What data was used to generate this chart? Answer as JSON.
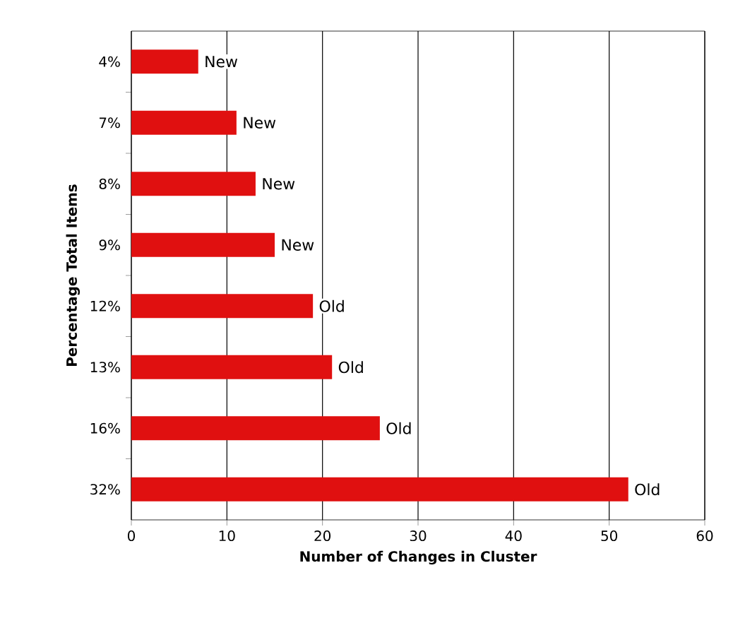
{
  "chart_data": {
    "type": "bar",
    "orientation": "horizontal",
    "xlabel": "Number of Changes in Cluster",
    "ylabel": "Percentage Total Items",
    "categories": [
      "4%",
      "7%",
      "8%",
      "9%",
      "12%",
      "13%",
      "16%",
      "32%"
    ],
    "values": [
      7,
      11,
      13,
      15,
      19,
      21,
      26,
      52
    ],
    "color": "#e01010",
    "xlim": [
      0,
      60
    ],
    "xticks": [
      0,
      10,
      20,
      30,
      40,
      50,
      60
    ],
    "grid": "x",
    "annotations": [
      {
        "text": "New",
        "x": 7,
        "y": "4%"
      },
      {
        "text": "New",
        "x": 11,
        "y": "7%"
      },
      {
        "text": "New",
        "x": 13,
        "y": "8%"
      },
      {
        "text": "New",
        "x": 15,
        "y": "9%"
      },
      {
        "text": "Old",
        "x": 19,
        "y": "12%"
      },
      {
        "text": "Old",
        "x": 21,
        "y": "13%"
      },
      {
        "text": "Old",
        "x": 26,
        "y": "16%"
      },
      {
        "text": "Old",
        "x": 52,
        "y": "32%"
      }
    ]
  }
}
